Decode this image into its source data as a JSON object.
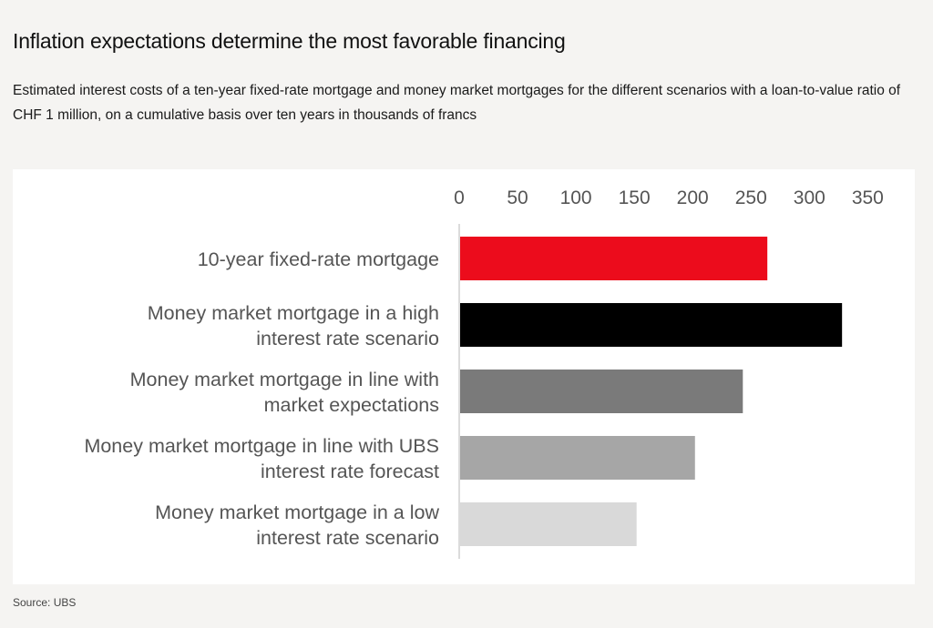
{
  "header": {
    "title": "Inflation expectations determine the most favorable financing",
    "subtitle": "Estimated interest costs of a ten-year fixed-rate mortgage and money market mortgages for the different scenarios with a loan-to-value ratio of CHF 1 million, on a cumulative basis over ten years in thousands of francs"
  },
  "footer": {
    "source": "Source: UBS"
  },
  "chart_data": {
    "type": "bar",
    "orientation": "horizontal",
    "title": "",
    "xlabel": "",
    "ylabel": "",
    "xlim": [
      0,
      350
    ],
    "ticks": [
      "0",
      "50",
      "100",
      "150",
      "200",
      "250",
      "300",
      "350"
    ],
    "tick_values": [
      0,
      50,
      100,
      150,
      200,
      250,
      300,
      350
    ],
    "axis_position": "top",
    "grid": false,
    "categories": [
      [
        "10-year fixed-rate mortgage"
      ],
      [
        "Money market mortgage in a high",
        "interest rate scenario"
      ],
      [
        "Money market mortgage in line with",
        "market expectations"
      ],
      [
        "Money market mortgage in line with UBS",
        "interest rate forecast"
      ],
      [
        "Money market mortgage in a low",
        "interest rate scenario"
      ]
    ],
    "values": [
      264,
      328,
      243,
      202,
      152
    ],
    "colors": [
      "#ec0c1c",
      "#000000",
      "#7a7a7a",
      "#a6a6a6",
      "#d9d9d9"
    ]
  }
}
